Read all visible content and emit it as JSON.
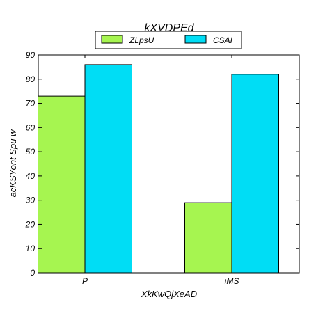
{
  "chart_data": {
    "type": "bar",
    "title": "kXVDPEd",
    "xlabel": "XkKwQjXeAD",
    "ylabel": "acKSYont Spu w",
    "categories": [
      "P",
      "iMS"
    ],
    "series": [
      {
        "name": "ZLpsU",
        "values": [
          73,
          29
        ],
        "color": "#a6f550"
      },
      {
        "name": "CSAI",
        "values": [
          86,
          82
        ],
        "color": "#00ddf5"
      }
    ],
    "ylim": [
      0,
      90
    ],
    "yticks": [
      0,
      10,
      20,
      30,
      40,
      50,
      60,
      70,
      80,
      90
    ],
    "grid": false,
    "legend_position": "top-center"
  }
}
